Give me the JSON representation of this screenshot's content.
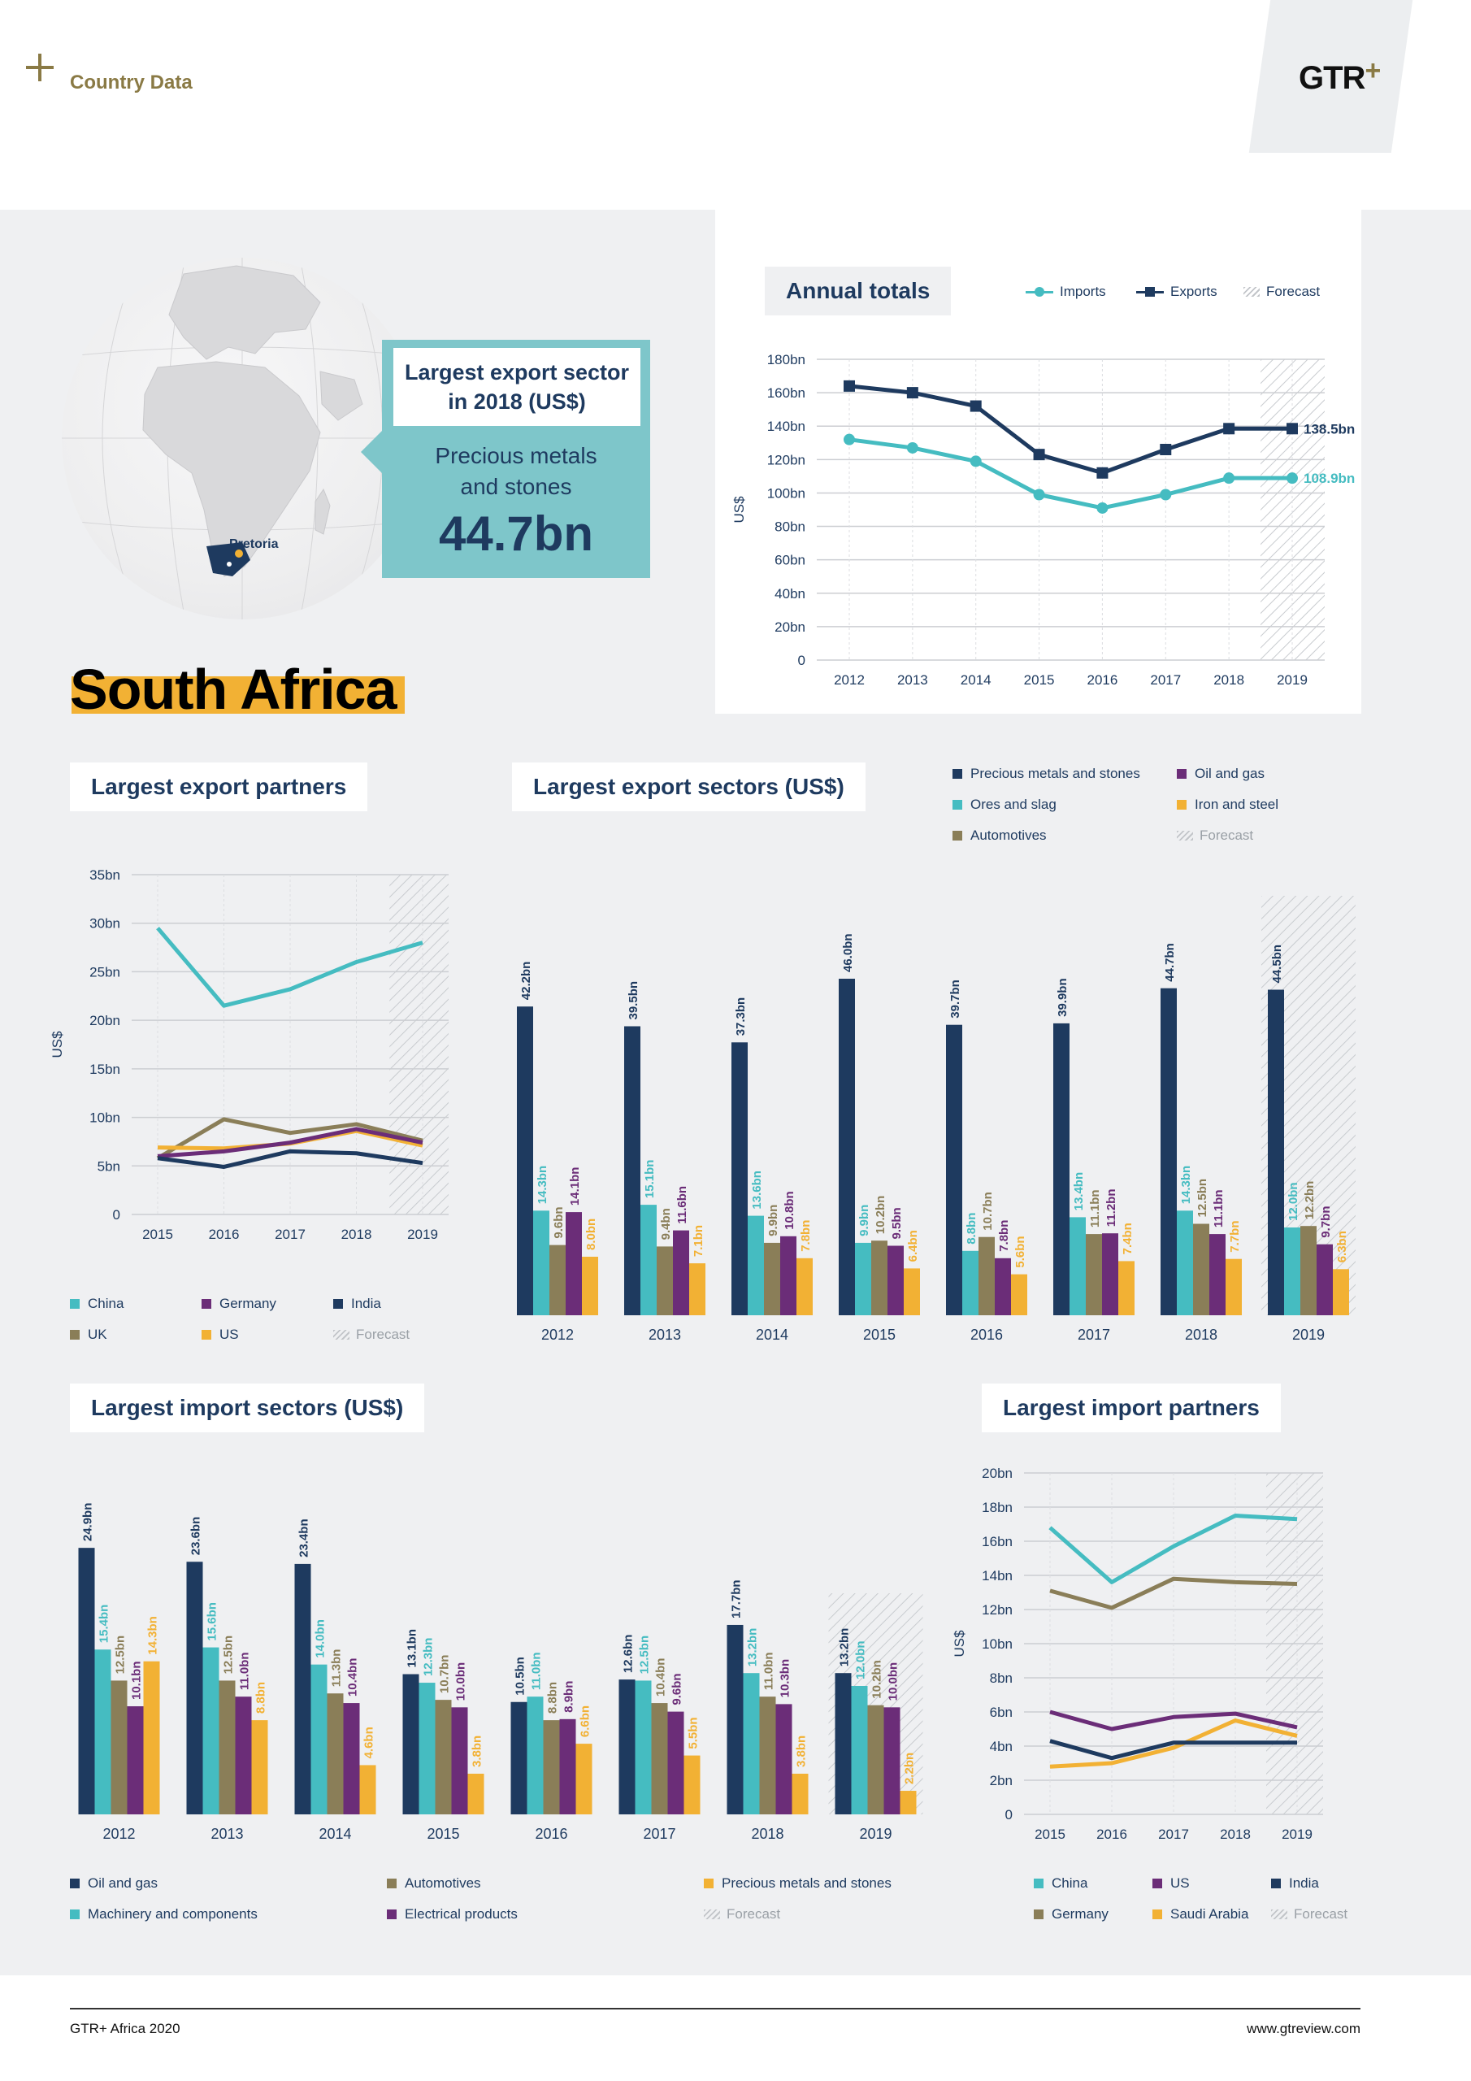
{
  "header": {
    "label": "Country Data",
    "logo": "GTR",
    "logo_plus": "+"
  },
  "country": "South Africa",
  "map": {
    "city": "Pretoria"
  },
  "callout": {
    "heading": "Largest export sector\nin 2018 (US$)",
    "sector": "Precious metals\nand stones",
    "value": "44.7bn"
  },
  "colors": {
    "navy": "#1e3a5f",
    "teal": "#45bcc1",
    "olive": "#8a7e58",
    "purple": "#6b2d78",
    "gold": "#f2b134",
    "hatch": "#c2c5c9",
    "grid": "#d4d6da",
    "gold_dark": "#8a7a45"
  },
  "annual": {
    "title": "Annual totals",
    "legend": [
      {
        "label": "Imports",
        "color": "#45bcc1",
        "marker": "circle"
      },
      {
        "label": "Exports",
        "color": "#1e3a5f",
        "marker": "square"
      },
      {
        "label": "Forecast",
        "hatch": true
      }
    ]
  },
  "export_partners_block": {
    "title": "Largest export partners",
    "legend": [
      {
        "label": "China",
        "color": "#45bcc1"
      },
      {
        "label": "Germany",
        "color": "#6b2d78"
      },
      {
        "label": "India",
        "color": "#1e3a5f"
      },
      {
        "label": "UK",
        "color": "#8a7e58"
      },
      {
        "label": "US",
        "color": "#f2b134"
      },
      {
        "label": "Forecast",
        "hatch": true
      }
    ]
  },
  "export_sectors_block": {
    "title": "Largest export sectors (US$)",
    "legend": [
      {
        "label": "Precious metals and stones",
        "color": "#1e3a5f"
      },
      {
        "label": "Oil and gas",
        "color": "#6b2d78"
      },
      {
        "label": "Ores and slag",
        "color": "#45bcc1"
      },
      {
        "label": "Iron and steel",
        "color": "#f2b134"
      },
      {
        "label": "Automotives",
        "color": "#8a7e58"
      },
      {
        "label": "Forecast",
        "hatch": true
      }
    ]
  },
  "import_sectors_block": {
    "title": "Largest import sectors (US$)",
    "legend": [
      {
        "label": "Oil and gas",
        "color": "#1e3a5f"
      },
      {
        "label": "Automotives",
        "color": "#8a7e58"
      },
      {
        "label": "Precious metals and stones",
        "color": "#f2b134"
      },
      {
        "label": "Machinery and components",
        "color": "#45bcc1"
      },
      {
        "label": "Electrical products",
        "color": "#6b2d78"
      },
      {
        "label": "Forecast",
        "hatch": true
      }
    ]
  },
  "import_partners_block": {
    "title": "Largest import partners",
    "legend": [
      {
        "label": "China",
        "color": "#45bcc1"
      },
      {
        "label": "US",
        "color": "#6b2d78"
      },
      {
        "label": "India",
        "color": "#1e3a5f"
      },
      {
        "label": "Germany",
        "color": "#8a7e58"
      },
      {
        "label": "Saudi Arabia",
        "color": "#f2b134"
      },
      {
        "label": "Forecast",
        "hatch": true
      }
    ]
  },
  "footer": {
    "left": "GTR+ Africa 2020",
    "right": "www.gtreview.com"
  },
  "chart_data": [
    {
      "id": "annual",
      "type": "line",
      "title": "Annual totals",
      "ylabel": "US$",
      "x": [
        "2012",
        "2013",
        "2014",
        "2015",
        "2016",
        "2017",
        "2018",
        "2019"
      ],
      "yticks": [
        "0",
        "20bn",
        "40bn",
        "60bn",
        "80bn",
        "100bn",
        "120bn",
        "140bn",
        "160bn",
        "180bn"
      ],
      "ylim": [
        0,
        180
      ],
      "forecast_from": "2019",
      "series": [
        {
          "name": "Imports",
          "color": "#45bcc1",
          "marker": "circle",
          "values": [
            132,
            127,
            119,
            99,
            91,
            99,
            108.9,
            108.9
          ],
          "end_label": "108.9bn"
        },
        {
          "name": "Exports",
          "color": "#1e3a5f",
          "marker": "square",
          "values": [
            164,
            160,
            152,
            123,
            112,
            126,
            138.5,
            138.5
          ],
          "end_label": "138.5bn"
        }
      ]
    },
    {
      "id": "export_partners",
      "type": "line",
      "title": "Largest export partners",
      "ylabel": "US$",
      "x": [
        "2015",
        "2016",
        "2017",
        "2018",
        "2019"
      ],
      "yticks": [
        "0",
        "5bn",
        "10bn",
        "15bn",
        "20bn",
        "25bn",
        "30bn",
        "35bn"
      ],
      "ylim": [
        0,
        35
      ],
      "forecast_from": "2019",
      "series": [
        {
          "name": "China",
          "color": "#45bcc1",
          "values": [
            29.5,
            21.5,
            23.2,
            26,
            28
          ]
        },
        {
          "name": "UK",
          "color": "#8a7e58",
          "values": [
            5.8,
            9.8,
            8.4,
            9.3,
            7.6
          ]
        },
        {
          "name": "US",
          "color": "#f2b134",
          "values": [
            6.9,
            6.8,
            7.3,
            8.6,
            7.1
          ]
        },
        {
          "name": "Germany",
          "color": "#6b2d78",
          "values": [
            6.0,
            6.5,
            7.4,
            8.8,
            7.4
          ]
        },
        {
          "name": "India",
          "color": "#1e3a5f",
          "values": [
            5.8,
            4.9,
            6.5,
            6.3,
            5.3
          ]
        }
      ]
    },
    {
      "id": "export_sectors",
      "type": "bar",
      "title": "Largest export sectors (US$)",
      "categories": [
        "2012",
        "2013",
        "2014",
        "2015",
        "2016",
        "2017",
        "2018",
        "2019"
      ],
      "ymax": 50,
      "forecast_from": "2019",
      "series": [
        {
          "name": "Precious metals and stones",
          "color": "#1e3a5f",
          "values": [
            42.2,
            39.5,
            37.3,
            46.0,
            39.7,
            39.9,
            44.7,
            44.5
          ],
          "labels": [
            "42.2bn",
            "39.5bn",
            "37.3bn",
            "46.0bn",
            "39.7bn",
            "39.9bn",
            "44.7bn",
            "44.5bn"
          ]
        },
        {
          "name": "Ores and slag",
          "color": "#45bcc1",
          "values": [
            14.3,
            15.1,
            13.6,
            9.9,
            8.8,
            13.4,
            14.3,
            12.0
          ],
          "labels": [
            "14.3bn",
            "15.1bn",
            "13.6bn",
            "9.9bn",
            "8.8bn",
            "13.4bn",
            "14.3bn",
            "12.0bn"
          ]
        },
        {
          "name": "Automotives",
          "color": "#8a7e58",
          "values": [
            9.6,
            9.4,
            9.9,
            10.2,
            10.7,
            11.1,
            12.5,
            12.2
          ],
          "labels": [
            "9.6bn",
            "9.4bn",
            "9.9bn",
            "10.2bn",
            "10.7bn",
            "11.1bn",
            "12.5bn",
            "12.2bn"
          ]
        },
        {
          "name": "Oil and gas",
          "color": "#6b2d78",
          "values": [
            14.1,
            11.6,
            10.8,
            9.5,
            7.8,
            11.2,
            11.1,
            9.7
          ],
          "labels": [
            "14.1bn",
            "11.6bn",
            "10.8bn",
            "9.5bn",
            "7.8bn",
            "11.2bn",
            "11.1bn",
            "9.7bn"
          ]
        },
        {
          "name": "Iron and steel",
          "color": "#f2b134",
          "values": [
            8.0,
            7.1,
            7.8,
            6.4,
            5.6,
            7.4,
            7.7,
            6.3
          ],
          "labels": [
            "8.0bn",
            "7.1bn",
            "7.8bn",
            "6.4bn",
            "5.6bn",
            "7.4bn",
            "7.7bn",
            "6.3bn"
          ]
        }
      ]
    },
    {
      "id": "import_sectors",
      "type": "bar",
      "title": "Largest import sectors (US$)",
      "categories": [
        "2012",
        "2013",
        "2014",
        "2015",
        "2016",
        "2017",
        "2018",
        "2019"
      ],
      "ymax": 30,
      "forecast_from": "2019",
      "series": [
        {
          "name": "Oil and gas",
          "color": "#1e3a5f",
          "values": [
            24.9,
            23.6,
            23.4,
            13.1,
            10.5,
            12.6,
            17.7,
            13.2
          ],
          "labels": [
            "24.9bn",
            "23.6bn",
            "23.4bn",
            "13.1bn",
            "10.5bn",
            "12.6bn",
            "17.7bn",
            "13.2bn"
          ]
        },
        {
          "name": "Machinery and components",
          "color": "#45bcc1",
          "values": [
            15.4,
            15.6,
            14.0,
            12.3,
            11.0,
            12.5,
            13.2,
            12.0
          ],
          "labels": [
            "15.4bn",
            "15.6bn",
            "14.0bn",
            "12.3bn",
            "11.0bn",
            "12.5bn",
            "13.2bn",
            "12.0bn"
          ]
        },
        {
          "name": "Automotives",
          "color": "#8a7e58",
          "values": [
            12.5,
            12.5,
            11.3,
            10.7,
            8.8,
            10.4,
            11.0,
            10.2
          ],
          "labels": [
            "12.5bn",
            "12.5bn",
            "11.3bn",
            "10.7bn",
            "8.8bn",
            "10.4bn",
            "11.0bn",
            "10.2bn"
          ]
        },
        {
          "name": "Electrical products",
          "color": "#6b2d78",
          "values": [
            10.1,
            11.0,
            10.4,
            10.0,
            8.9,
            9.6,
            10.3,
            10.0
          ],
          "labels": [
            "10.1bn",
            "11.0bn",
            "10.4bn",
            "10.0bn",
            "8.9bn",
            "9.6bn",
            "10.3bn",
            "10.0bn"
          ]
        },
        {
          "name": "Precious metals and stones",
          "color": "#f2b134",
          "values": [
            14.3,
            8.8,
            4.6,
            3.8,
            6.6,
            5.5,
            3.8,
            2.2
          ],
          "labels": [
            "14.3bn",
            "8.8bn",
            "4.6bn",
            "3.8bn",
            "6.6bn",
            "5.5bn",
            "3.8bn",
            "2.2bn"
          ]
        }
      ]
    },
    {
      "id": "import_partners",
      "type": "line",
      "title": "Largest import partners",
      "ylabel": "US$",
      "x": [
        "2015",
        "2016",
        "2017",
        "2018",
        "2019"
      ],
      "yticks": [
        "0",
        "2bn",
        "4bn",
        "6bn",
        "8bn",
        "10bn",
        "12bn",
        "14bn",
        "16bn",
        "18bn",
        "20bn"
      ],
      "ylim": [
        0,
        20
      ],
      "forecast_from": "2019",
      "series": [
        {
          "name": "China",
          "color": "#45bcc1",
          "values": [
            16.8,
            13.6,
            15.7,
            17.5,
            17.3
          ]
        },
        {
          "name": "Germany",
          "color": "#8a7e58",
          "values": [
            13.1,
            12.1,
            13.8,
            13.6,
            13.5
          ]
        },
        {
          "name": "US",
          "color": "#6b2d78",
          "values": [
            6.0,
            5.0,
            5.7,
            5.9,
            5.1
          ]
        },
        {
          "name": "Saudi Arabia",
          "color": "#f2b134",
          "values": [
            2.8,
            3.0,
            3.9,
            5.5,
            4.6
          ]
        },
        {
          "name": "India",
          "color": "#1e3a5f",
          "values": [
            4.3,
            3.3,
            4.2,
            4.2,
            4.2
          ]
        }
      ]
    }
  ]
}
